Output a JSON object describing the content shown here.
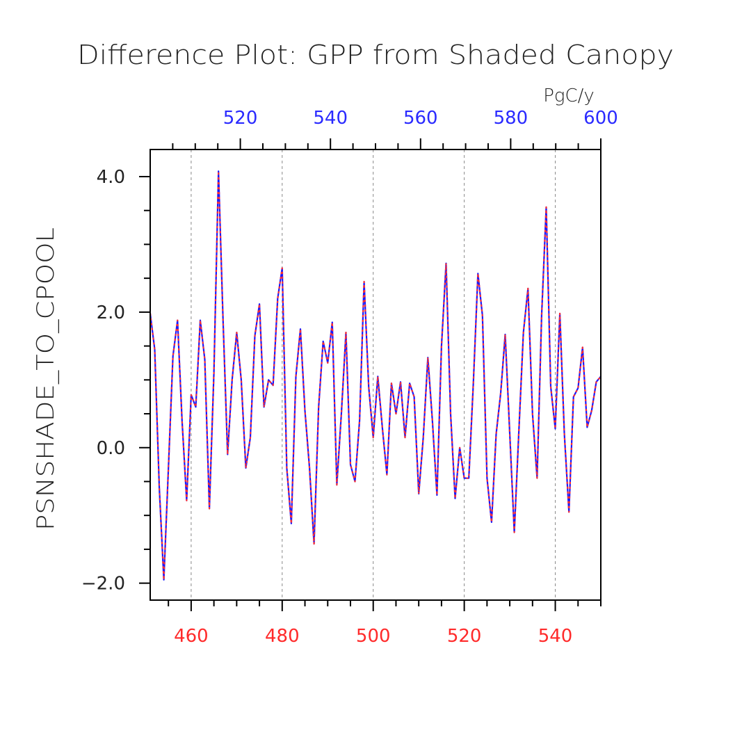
{
  "chart_data": {
    "type": "line",
    "title": "Difference Plot: GPP from Shaded Canopy",
    "ylabel": "PSNSHADE_TO_CPOOL",
    "top_axis_unit": "PgC/y",
    "xlim_bottom": [
      451,
      550
    ],
    "xlim_top": [
      500,
      600
    ],
    "ylim": [
      -2.25,
      4.4
    ],
    "bottom_ticks": [
      460,
      480,
      500,
      520,
      540
    ],
    "top_ticks": [
      520,
      540,
      560,
      580,
      600
    ],
    "y_ticks": [
      "-2.0",
      "0.0",
      "2.0",
      "4.0"
    ],
    "y_tick_values": [
      -2.0,
      0.0,
      2.0,
      4.0
    ],
    "grid": "vertical dashed at bottom-axis ticks",
    "colors": {
      "bottom_axis": "#ff2a2a",
      "top_axis": "#2a2aff",
      "line_blue": "#1a1aff",
      "line_red": "#ff3030",
      "axis": "#000000",
      "grid": "#888888"
    },
    "x": [
      451,
      452,
      453,
      454,
      455,
      456,
      457,
      458,
      459,
      460,
      461,
      462,
      463,
      464,
      465,
      466,
      467,
      468,
      469,
      470,
      471,
      472,
      473,
      474,
      475,
      476,
      477,
      478,
      479,
      480,
      481,
      482,
      483,
      484,
      485,
      486,
      487,
      488,
      489,
      490,
      491,
      492,
      493,
      494,
      495,
      496,
      497,
      498,
      499,
      500,
      501,
      502,
      503,
      504,
      505,
      506,
      507,
      508,
      509,
      510,
      511,
      512,
      513,
      514,
      515,
      516,
      517,
      518,
      519,
      520,
      521,
      522,
      523,
      524,
      525,
      526,
      527,
      528,
      529,
      530,
      531,
      532,
      533,
      534,
      535,
      536,
      537,
      538,
      539,
      540,
      541,
      542,
      543,
      544,
      545,
      546,
      547,
      548,
      549,
      550
    ],
    "series": [
      {
        "values": [
          1.98,
          1.45,
          -0.6,
          -1.95,
          -0.3,
          1.35,
          1.88,
          0.4,
          -0.78,
          0.78,
          0.6,
          1.88,
          1.3,
          -0.9,
          1.1,
          4.08,
          1.9,
          -0.1,
          1.0,
          1.7,
          1.0,
          -0.3,
          0.15,
          1.65,
          2.12,
          0.6,
          1.0,
          0.92,
          2.2,
          2.65,
          -0.3,
          -1.12,
          1.05,
          1.75,
          0.55,
          -0.3,
          -1.42,
          0.6,
          1.57,
          1.25,
          1.85,
          -0.55,
          0.5,
          1.7,
          -0.25,
          -0.5,
          0.4,
          2.45,
          0.9,
          0.15,
          1.05,
          0.3,
          -0.4,
          0.95,
          0.5,
          0.97,
          0.15,
          0.95,
          0.75,
          -0.68,
          0.15,
          1.33,
          0.4,
          -0.7,
          1.5,
          2.72,
          0.5,
          -0.75,
          0.0,
          -0.45,
          -0.45,
          0.95,
          2.57,
          1.95,
          -0.45,
          -1.1,
          0.2,
          0.8,
          1.67,
          0.2,
          -1.25,
          0.25,
          1.7,
          2.35,
          0.5,
          -0.45,
          1.95,
          3.55,
          0.9,
          0.28,
          1.98,
          0.2,
          -0.95,
          0.75,
          0.88,
          1.48,
          0.3,
          0.55,
          0.97,
          1.05
        ]
      }
    ]
  }
}
